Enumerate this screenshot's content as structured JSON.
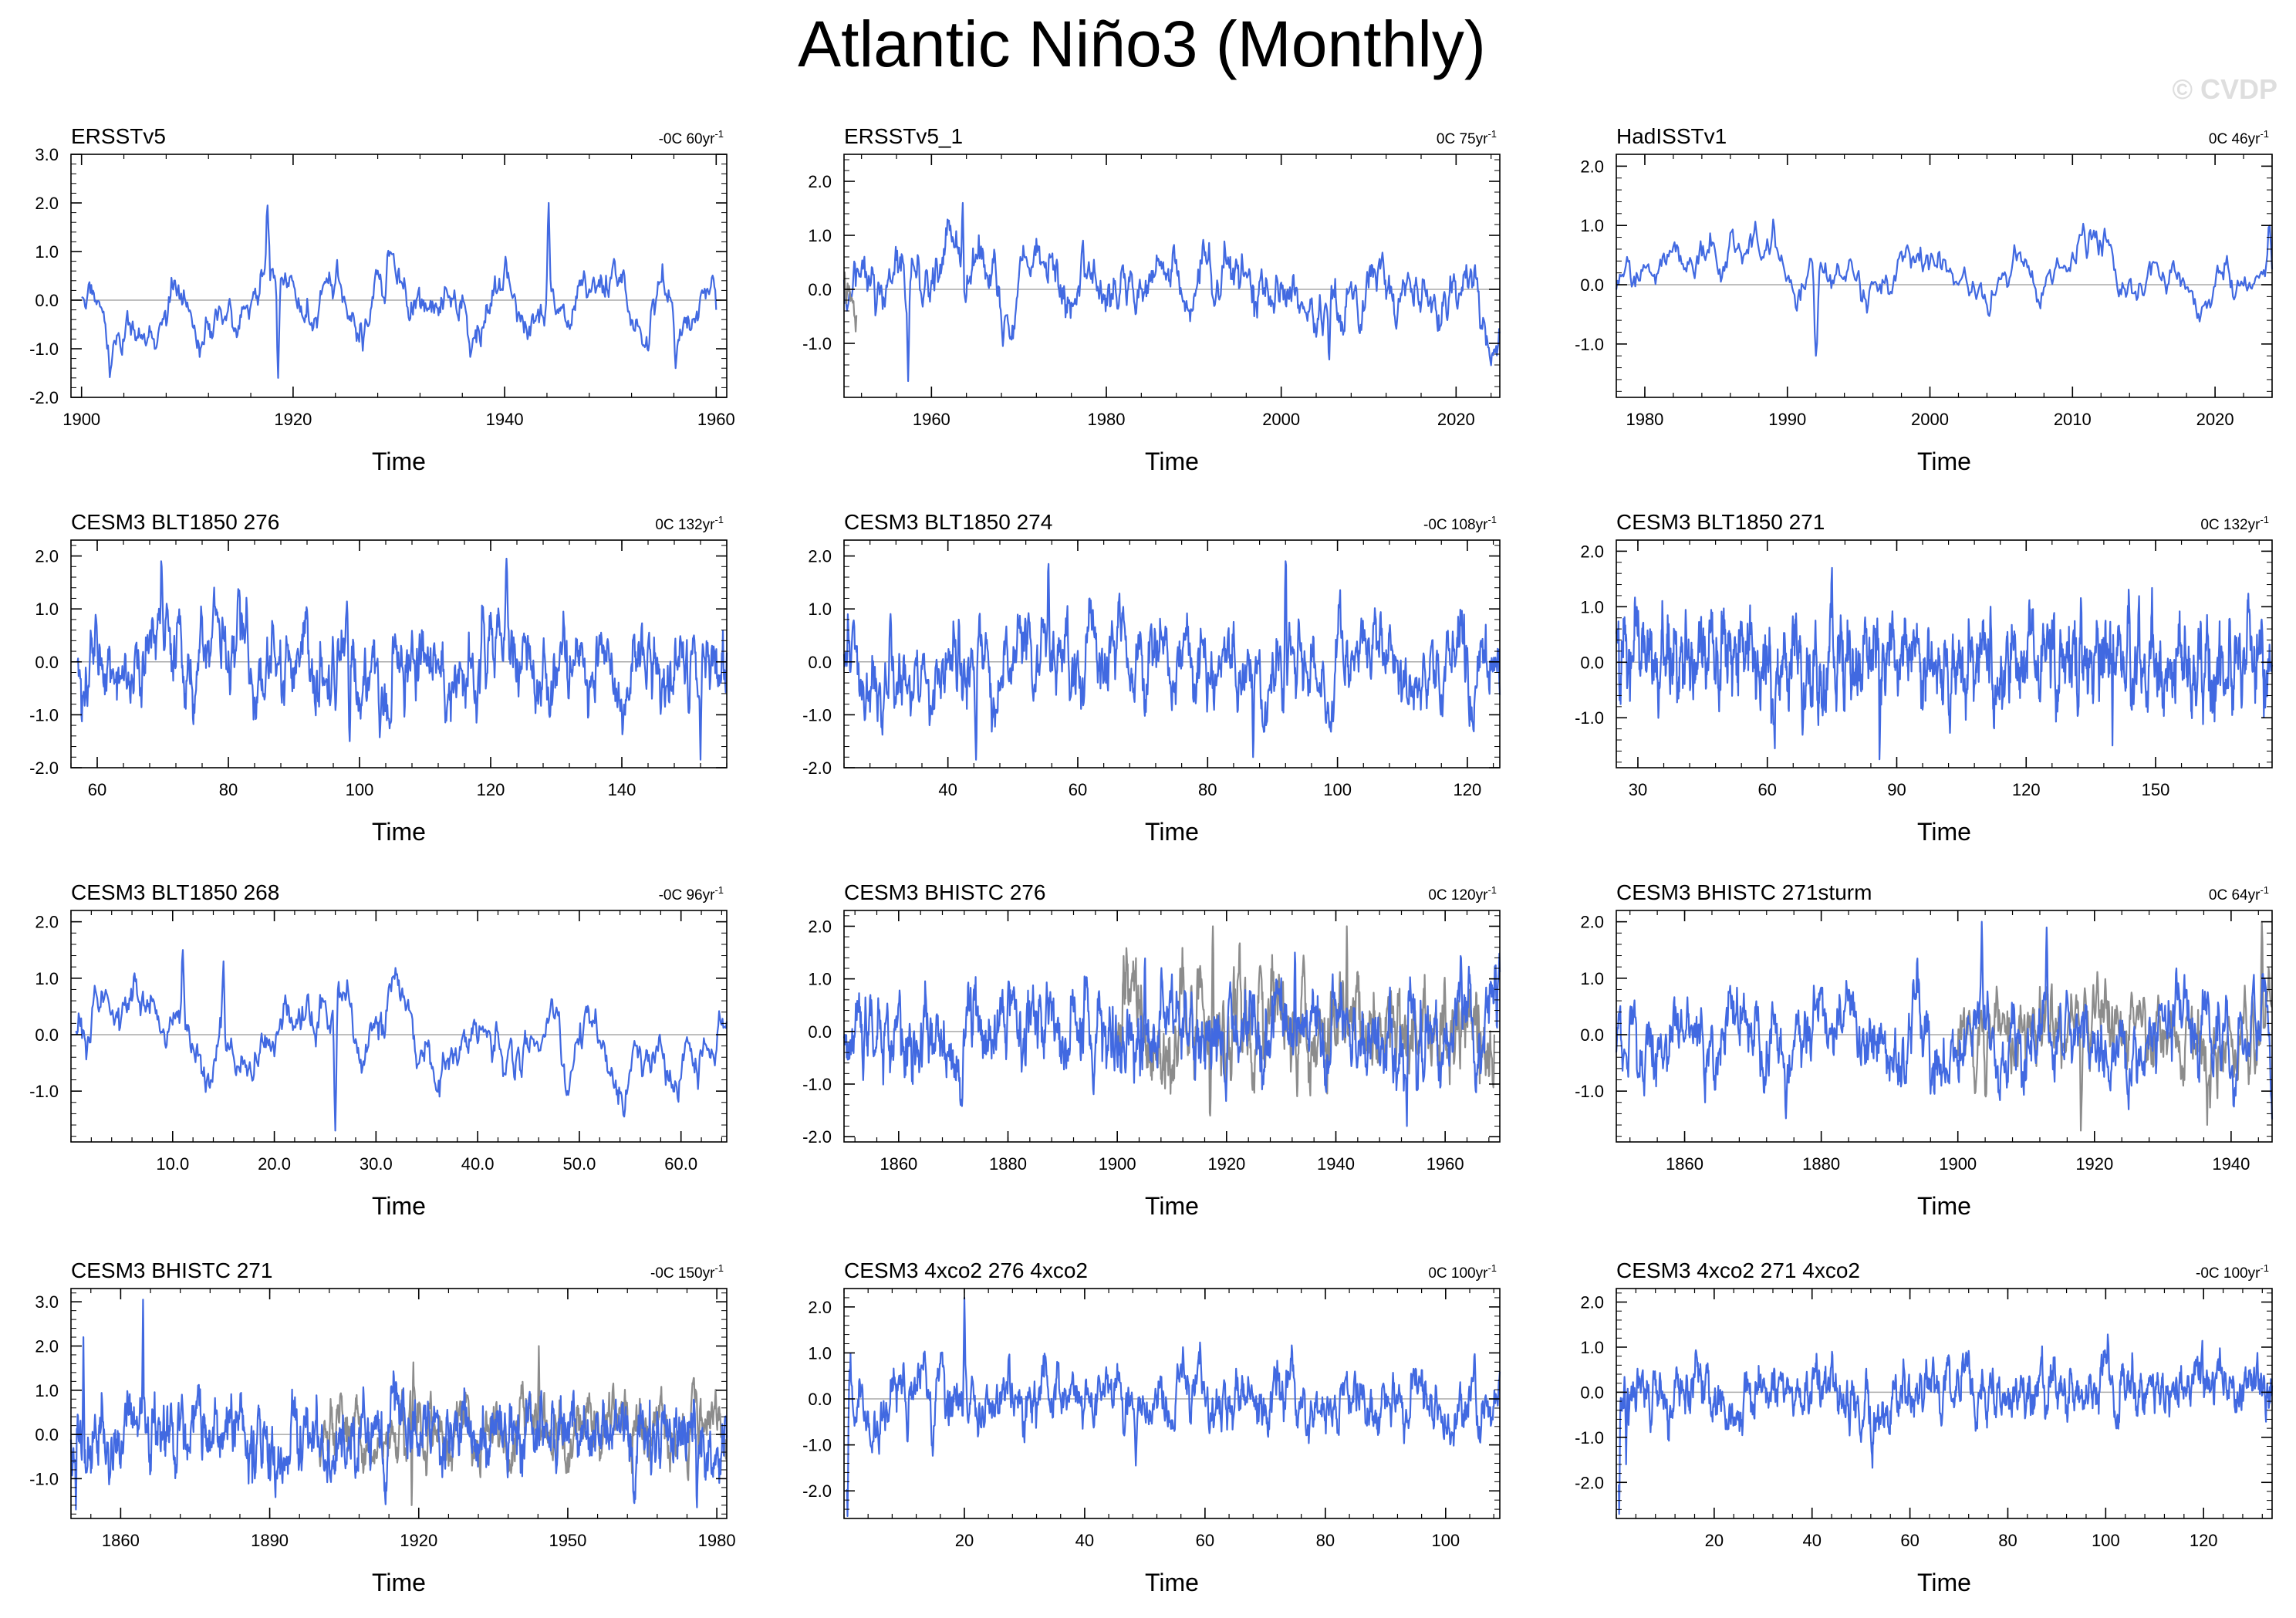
{
  "figure": {
    "title": "Atlantic Niño3 (Monthly)",
    "watermark": "© CVDP",
    "colors": {
      "primary": "#4169e1",
      "secondary": "#8c8c8c",
      "axis": "#000000",
      "zero": "#aaaaaa",
      "watermark": "#dedede"
    }
  },
  "chart_data": [
    {
      "type": "line",
      "title": "ERSSTv5",
      "trend_text": "-0C 60yr",
      "trend_sup": "-1",
      "xlabel": "Time",
      "xlim": [
        1899,
        1961
      ],
      "ylim": [
        -2.0,
        3.0
      ],
      "yticks": [
        "3.0",
        "2.0",
        "1.0",
        "0.0",
        "-1.0",
        "-2.0"
      ],
      "xticks": [
        1900,
        1920,
        1940,
        1960
      ],
      "xtick_labels": [
        "1900",
        "1920",
        "1940",
        "1960"
      ],
      "series": [
        {
          "name": "ERSSTv5",
          "color": "primary",
          "x_range": [
            1900,
            1960
          ],
          "amp": 0.48,
          "persist": 0.95,
          "seed": 11,
          "peaks": [
            [
              1917.6,
              1.95
            ],
            [
              1944.2,
              2.0
            ],
            [
              1918.6,
              -1.6
            ],
            [
              1956.2,
              -1.4
            ]
          ]
        }
      ]
    },
    {
      "type": "line",
      "title": "ERSSTv5_1",
      "trend_text": "0C 75yr",
      "trend_sup": "-1",
      "xlabel": "Time",
      "xlim": [
        1950,
        2025
      ],
      "ylim": [
        -2.0,
        2.5
      ],
      "yticks": [
        "2.0",
        "1.0",
        "0.0",
        "-1.0"
      ],
      "xticks": [
        1960,
        1980,
        2000,
        2020
      ],
      "xtick_labels": [
        "1960",
        "1980",
        "2000",
        "2020"
      ],
      "series": [
        {
          "name": "ERSSTv5_1",
          "color": "primary",
          "x_range": [
            1950,
            2025
          ],
          "amp": 0.45,
          "persist": 0.92,
          "seed": 21,
          "peaks": [
            [
              1963.6,
              1.6
            ],
            [
              1957.3,
              -1.7
            ],
            [
              2005.5,
              -1.3
            ]
          ]
        },
        {
          "name": "overlay",
          "color": "secondary",
          "x_range": [
            1950,
            1951.4
          ],
          "amp": 0.4,
          "persist": 0.9,
          "seed": 22,
          "peaks": []
        }
      ]
    },
    {
      "type": "line",
      "title": "HadISSTv1",
      "trend_text": "0C 46yr",
      "trend_sup": "-1",
      "xlabel": "Time",
      "xlim": [
        1978,
        2024
      ],
      "ylim": [
        -1.9,
        2.2
      ],
      "yticks": [
        "2.0",
        "1.0",
        "0.0",
        "-1.0"
      ],
      "xticks": [
        1980,
        1990,
        2000,
        2010,
        2020
      ],
      "xtick_labels": [
        "1980",
        "1990",
        "2000",
        "2010",
        "2020"
      ],
      "series": [
        {
          "name": "HadISSTv1",
          "color": "primary",
          "x_range": [
            1978,
            2024
          ],
          "amp": 0.42,
          "persist": 0.96,
          "seed": 31,
          "peaks": [
            [
              1989.0,
              1.1
            ],
            [
              1992.0,
              -1.2
            ],
            [
              2023.8,
              1.0
            ]
          ]
        }
      ]
    },
    {
      "type": "line",
      "title": "CESM3 BLT1850 276",
      "trend_text": "0C 132yr",
      "trend_sup": "-1",
      "xlabel": "Time",
      "xlim": [
        56,
        156
      ],
      "ylim": [
        -2.0,
        2.3
      ],
      "yticks": [
        "2.0",
        "1.0",
        "0.0",
        "-1.0",
        "-2.0"
      ],
      "xticks": [
        60,
        80,
        100,
        120,
        140
      ],
      "xtick_labels": [
        "60",
        "80",
        "100",
        "120",
        "140"
      ],
      "series": [
        {
          "name": "CESM3 BLT1850 276",
          "color": "primary",
          "x_range": [
            57,
            156
          ],
          "amp": 0.5,
          "persist": 0.85,
          "seed": 41,
          "peaks": [
            [
              122.4,
              1.95
            ],
            [
              69.8,
              1.8
            ],
            [
              152.0,
              -1.85
            ],
            [
              98.5,
              -1.5
            ]
          ]
        }
      ]
    },
    {
      "type": "line",
      "title": "CESM3 BLT1850 274",
      "trend_text": "-0C 108yr",
      "trend_sup": "-1",
      "xlabel": "Time",
      "xlim": [
        24,
        125
      ],
      "ylim": [
        -2.0,
        2.3
      ],
      "yticks": [
        "2.0",
        "1.0",
        "0.0",
        "-1.0",
        "-2.0"
      ],
      "xticks": [
        40,
        60,
        80,
        100,
        120
      ],
      "xtick_labels": [
        "40",
        "60",
        "80",
        "100",
        "120"
      ],
      "series": [
        {
          "name": "CESM3 BLT1850 274",
          "color": "primary",
          "x_range": [
            24,
            125
          ],
          "amp": 0.5,
          "persist": 0.86,
          "seed": 51,
          "peaks": [
            [
              92.0,
              1.9
            ],
            [
              55.5,
              1.85
            ],
            [
              44.3,
              -1.85
            ],
            [
              87.0,
              -1.8
            ]
          ]
        }
      ]
    },
    {
      "type": "line",
      "title": "CESM3 BLT1850 271",
      "trend_text": "0C 132yr",
      "trend_sup": "-1",
      "xlabel": "Time",
      "xlim": [
        25,
        177
      ],
      "ylim": [
        -1.9,
        2.2
      ],
      "yticks": [
        "2.0",
        "1.0",
        "0.0",
        "-1.0"
      ],
      "xticks": [
        30,
        60,
        90,
        120,
        150
      ],
      "xtick_labels": [
        "30",
        "60",
        "90",
        "120",
        "150"
      ],
      "series": [
        {
          "name": "CESM3 BLT1850 271",
          "color": "primary",
          "x_range": [
            25,
            177
          ],
          "amp": 0.45,
          "persist": 0.8,
          "seed": 61,
          "peaks": [
            [
              75.0,
              1.7
            ],
            [
              86.0,
              -1.75
            ],
            [
              140.0,
              -1.5
            ]
          ]
        }
      ]
    },
    {
      "type": "line",
      "title": "CESM3 BLT1850 268",
      "trend_text": "-0C 96yr",
      "trend_sup": "-1",
      "xlabel": "Time",
      "xlim": [
        0,
        64.5
      ],
      "ylim": [
        -1.9,
        2.2
      ],
      "yticks": [
        "2.0",
        "1.0",
        "0.0",
        "-1.0"
      ],
      "xticks": [
        10,
        20,
        30,
        40,
        50,
        60
      ],
      "xtick_labels": [
        "10.0",
        "20.0",
        "30.0",
        "40.0",
        "50.0",
        "60.0"
      ],
      "series": [
        {
          "name": "CESM3 BLT1850 268",
          "color": "primary",
          "x_range": [
            0.5,
            64.5
          ],
          "amp": 0.45,
          "persist": 0.95,
          "seed": 71,
          "peaks": [
            [
              11.0,
              1.5
            ],
            [
              26.0,
              -1.7
            ],
            [
              15.0,
              1.3
            ]
          ]
        }
      ]
    },
    {
      "type": "line",
      "title": "CESM3 BHISTC 276",
      "trend_text": "0C 120yr",
      "trend_sup": "-1",
      "xlabel": "Time",
      "xlim": [
        1850,
        1970
      ],
      "ylim": [
        -2.1,
        2.3
      ],
      "yticks": [
        "2.0",
        "1.0",
        "0.0",
        "-1.0",
        "-2.0"
      ],
      "xticks": [
        1860,
        1880,
        1900,
        1920,
        1940,
        1960
      ],
      "xtick_labels": [
        "1860",
        "1880",
        "1900",
        "1920",
        "1940",
        "1960"
      ],
      "series": [
        {
          "name": "observed",
          "color": "secondary",
          "x_range": [
            1900,
            1969
          ],
          "amp": 0.55,
          "persist": 0.82,
          "seed": 81,
          "peaks": [
            [
              1917.5,
              2.0
            ],
            [
              1942.0,
              2.0
            ],
            [
              1917.0,
              -1.6
            ]
          ]
        },
        {
          "name": "CESM3 BHISTC 276",
          "color": "primary",
          "x_range": [
            1850,
            1970
          ],
          "amp": 0.5,
          "persist": 0.84,
          "seed": 82,
          "peaks": [
            [
              1953.0,
              -1.8
            ],
            [
              1932.5,
              1.5
            ],
            [
              1905.0,
              1.2
            ]
          ]
        }
      ]
    },
    {
      "type": "line",
      "title": "CESM3 BHISTC 271sturm",
      "trend_text": "0C 64yr",
      "trend_sup": "-1",
      "xlabel": "Time",
      "xlim": [
        1850,
        1946
      ],
      "ylim": [
        -1.9,
        2.2
      ],
      "yticks": [
        "2.0",
        "1.0",
        "0.0",
        "-1.0"
      ],
      "xticks": [
        1860,
        1880,
        1900,
        1920,
        1940
      ],
      "xtick_labels": [
        "1860",
        "1880",
        "1900",
        "1920",
        "1940"
      ],
      "series": [
        {
          "name": "observed",
          "color": "secondary",
          "x_range": [
            1900,
            1946
          ],
          "amp": 0.5,
          "persist": 0.85,
          "seed": 91,
          "peaks": [
            [
              1944.5,
              2.0
            ],
            [
              1918.0,
              -1.7
            ],
            [
              1936.5,
              -1.6
            ]
          ]
        },
        {
          "name": "CESM3 BHISTC 271sturm",
          "color": "primary",
          "x_range": [
            1850,
            1946
          ],
          "amp": 0.48,
          "persist": 0.85,
          "seed": 92,
          "peaks": [
            [
              1903.5,
              2.0
            ],
            [
              1913.0,
              1.9
            ],
            [
              1863.0,
              -1.2
            ]
          ]
        }
      ]
    },
    {
      "type": "line",
      "title": "CESM3 BHISTC 271",
      "trend_text": "-0C 150yr",
      "trend_sup": "-1",
      "xlabel": "Time",
      "xlim": [
        1850,
        1982
      ],
      "ylim": [
        -1.9,
        3.3
      ],
      "yticks": [
        "3.0",
        "2.0",
        "1.0",
        "0.0",
        "-1.0"
      ],
      "xticks": [
        1860,
        1890,
        1920,
        1950,
        1980
      ],
      "xtick_labels": [
        "1860",
        "1890",
        "1920",
        "1950",
        "1980"
      ],
      "series": [
        {
          "name": "observed",
          "color": "secondary",
          "x_range": [
            1900,
            1982
          ],
          "amp": 0.45,
          "persist": 0.86,
          "seed": 101,
          "peaks": [
            [
              1944.2,
              2.0
            ],
            [
              1918.6,
              -1.6
            ]
          ]
        },
        {
          "name": "CESM3 BHISTC 271",
          "color": "primary",
          "x_range": [
            1850,
            1982
          ],
          "amp": 0.5,
          "persist": 0.84,
          "seed": 102,
          "peaks": [
            [
              1864.5,
              3.05
            ],
            [
              1851.0,
              -1.7
            ],
            [
              1976.0,
              -1.65
            ],
            [
              1852.5,
              2.2
            ]
          ]
        }
      ]
    },
    {
      "type": "line",
      "title": "CESM3 4xco2 276 4xco2",
      "trend_text": "0C 100yr",
      "trend_sup": "-1",
      "xlabel": "Time",
      "xlim": [
        0,
        109
      ],
      "ylim": [
        -2.6,
        2.4
      ],
      "yticks": [
        "2.0",
        "1.0",
        "0.0",
        "-1.0",
        "-2.0"
      ],
      "xticks": [
        20,
        40,
        60,
        80,
        100
      ],
      "xtick_labels": [
        "20",
        "40",
        "60",
        "80",
        "100"
      ],
      "series": [
        {
          "name": "CESM3 4xco2 276 4xco2",
          "color": "primary",
          "x_range": [
            0.5,
            109
          ],
          "amp": 0.42,
          "persist": 0.85,
          "seed": 111,
          "peaks": [
            [
              0.6,
              -2.55
            ],
            [
              20.0,
              2.2
            ],
            [
              48.5,
              -1.45
            ]
          ]
        }
      ]
    },
    {
      "type": "line",
      "title": "CESM3 4xco2 271 4xco2",
      "trend_text": "-0C 100yr",
      "trend_sup": "-1",
      "xlabel": "Time",
      "xlim": [
        0,
        134
      ],
      "ylim": [
        -2.8,
        2.3
      ],
      "yticks": [
        "2.0",
        "1.0",
        "0.0",
        "-1.0",
        "-2.0"
      ],
      "xticks": [
        20,
        40,
        60,
        80,
        100,
        120
      ],
      "xtick_labels": [
        "20",
        "40",
        "60",
        "80",
        "100",
        "120"
      ],
      "series": [
        {
          "name": "CESM3 4xco2 271 4xco2",
          "color": "primary",
          "x_range": [
            0.5,
            134
          ],
          "amp": 0.4,
          "persist": 0.88,
          "seed": 121,
          "peaks": [
            [
              0.6,
              -2.7
            ],
            [
              100.5,
              1.15
            ],
            [
              2.0,
              -1.6
            ]
          ]
        }
      ]
    }
  ]
}
